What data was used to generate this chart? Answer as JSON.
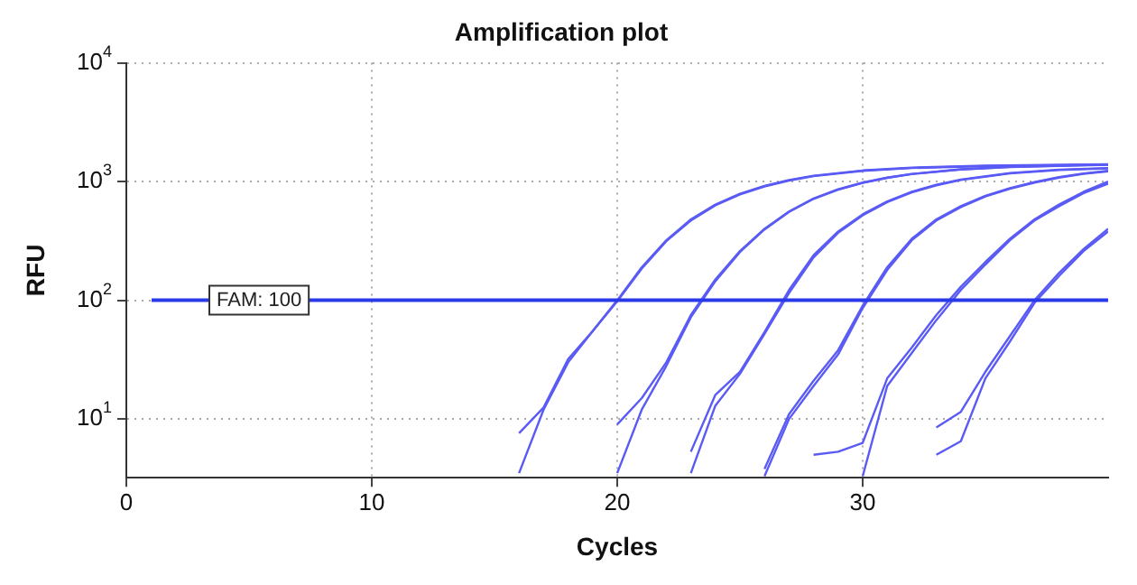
{
  "chart_data": {
    "type": "line",
    "title": "Amplification plot",
    "xlabel": "Cycles",
    "ylabel": "RFU",
    "log": "y",
    "grid": true,
    "marker": "none",
    "legend": false,
    "xlim": [
      0,
      40
    ],
    "xticks": [
      0,
      10,
      20,
      30
    ],
    "ylim": [
      3.2,
      10000
    ],
    "yticks": [
      {
        "value": 10,
        "label": "10$^{1}$"
      },
      {
        "value": 100,
        "label": "10$^{2}$"
      },
      {
        "value": 1000,
        "label": "10$^{3}$"
      },
      {
        "value": 10000,
        "label": "10$^{4}$"
      }
    ],
    "ref_lines": [
      {
        "axis": "y",
        "value": 100,
        "label": "FAM: 100",
        "color": "#2a3ae8"
      }
    ],
    "series": [
      {
        "color": "#5a5af5",
        "x": [
          16,
          17,
          18,
          19,
          20,
          21,
          22,
          23,
          24,
          25,
          26,
          27,
          28,
          30,
          32,
          35,
          40
        ],
        "values": [
          7.6,
          12.5,
          32,
          55,
          100,
          190,
          320,
          480,
          640,
          790,
          920,
          1030,
          1120,
          1240,
          1310,
          1360,
          1400
        ]
      },
      {
        "color": "#5a5af5",
        "x": [
          16,
          17,
          18,
          19,
          20,
          21,
          22,
          23,
          24,
          25,
          26,
          27,
          28,
          30,
          32,
          35,
          40
        ],
        "values": [
          3.5,
          12,
          30,
          55,
          98,
          185,
          315,
          470,
          630,
          780,
          910,
          1020,
          1110,
          1230,
          1300,
          1350,
          1390
        ]
      },
      {
        "color": "#5a5af5",
        "x": [
          20,
          21,
          22,
          23,
          24,
          25,
          26,
          27,
          28,
          29,
          30,
          31,
          32,
          34,
          36,
          40
        ],
        "values": [
          9,
          15,
          30,
          75,
          150,
          260,
          400,
          560,
          720,
          860,
          980,
          1080,
          1160,
          1270,
          1330,
          1390
        ]
      },
      {
        "color": "#5a5af5",
        "x": [
          20,
          21,
          22,
          23,
          24,
          25,
          26,
          27,
          28,
          29,
          30,
          31,
          32,
          34,
          36,
          40
        ],
        "values": [
          3.5,
          12,
          28,
          72,
          145,
          255,
          395,
          555,
          715,
          855,
          975,
          1075,
          1155,
          1265,
          1325,
          1385
        ]
      },
      {
        "color": "#5a5af5",
        "x": [
          23,
          24,
          25,
          26,
          27,
          28,
          29,
          30,
          31,
          32,
          33,
          34,
          36,
          38,
          40
        ],
        "values": [
          5.3,
          16,
          25,
          54,
          122,
          240,
          380,
          530,
          680,
          820,
          940,
          1040,
          1180,
          1260,
          1300
        ]
      },
      {
        "color": "#5a5af5",
        "x": [
          23,
          24,
          25,
          26,
          27,
          28,
          29,
          30,
          31,
          32,
          33,
          34,
          36,
          38,
          40
        ],
        "values": [
          3.5,
          13,
          24,
          52,
          115,
          230,
          370,
          520,
          670,
          810,
          930,
          1030,
          1170,
          1250,
          1290
        ]
      },
      {
        "color": "#5a5af5",
        "x": [
          26,
          27,
          28,
          29,
          30,
          31,
          32,
          33,
          34,
          35,
          36,
          37,
          38,
          39,
          40
        ],
        "values": [
          3.8,
          11,
          21,
          38,
          90,
          190,
          330,
          480,
          620,
          760,
          880,
          990,
          1090,
          1170,
          1230
        ]
      },
      {
        "color": "#5a5af5",
        "x": [
          26,
          27,
          28,
          29,
          30,
          31,
          32,
          33,
          34,
          35,
          36,
          37,
          38,
          39,
          40
        ],
        "values": [
          3.3,
          10,
          19,
          35,
          86,
          180,
          320,
          470,
          610,
          750,
          870,
          980,
          1080,
          1160,
          1220
        ]
      },
      {
        "color": "#5a5af5",
        "x": [
          28,
          29,
          30,
          31,
          32,
          33,
          34,
          35,
          36,
          37,
          38,
          39,
          40
        ],
        "values": [
          5,
          5.3,
          6.3,
          22,
          40,
          75,
          130,
          210,
          330,
          480,
          640,
          820,
          1000
        ]
      },
      {
        "color": "#5a5af5",
        "x": [
          30,
          31,
          32,
          33,
          34,
          35,
          36,
          37,
          38,
          39,
          40
        ],
        "values": [
          3.3,
          19,
          36,
          68,
          122,
          200,
          320,
          470,
          620,
          800,
          960
        ]
      },
      {
        "color": "#5a5af5",
        "x": [
          33,
          34,
          35,
          36,
          37,
          38,
          39,
          40
        ],
        "values": [
          8.5,
          11.5,
          25,
          50,
          100,
          170,
          270,
          400
        ]
      },
      {
        "color": "#5a5af5",
        "x": [
          33,
          34,
          35,
          36,
          37,
          38,
          39,
          40
        ],
        "values": [
          5,
          6.5,
          22,
          45,
          95,
          160,
          260,
          380
        ]
      }
    ]
  }
}
